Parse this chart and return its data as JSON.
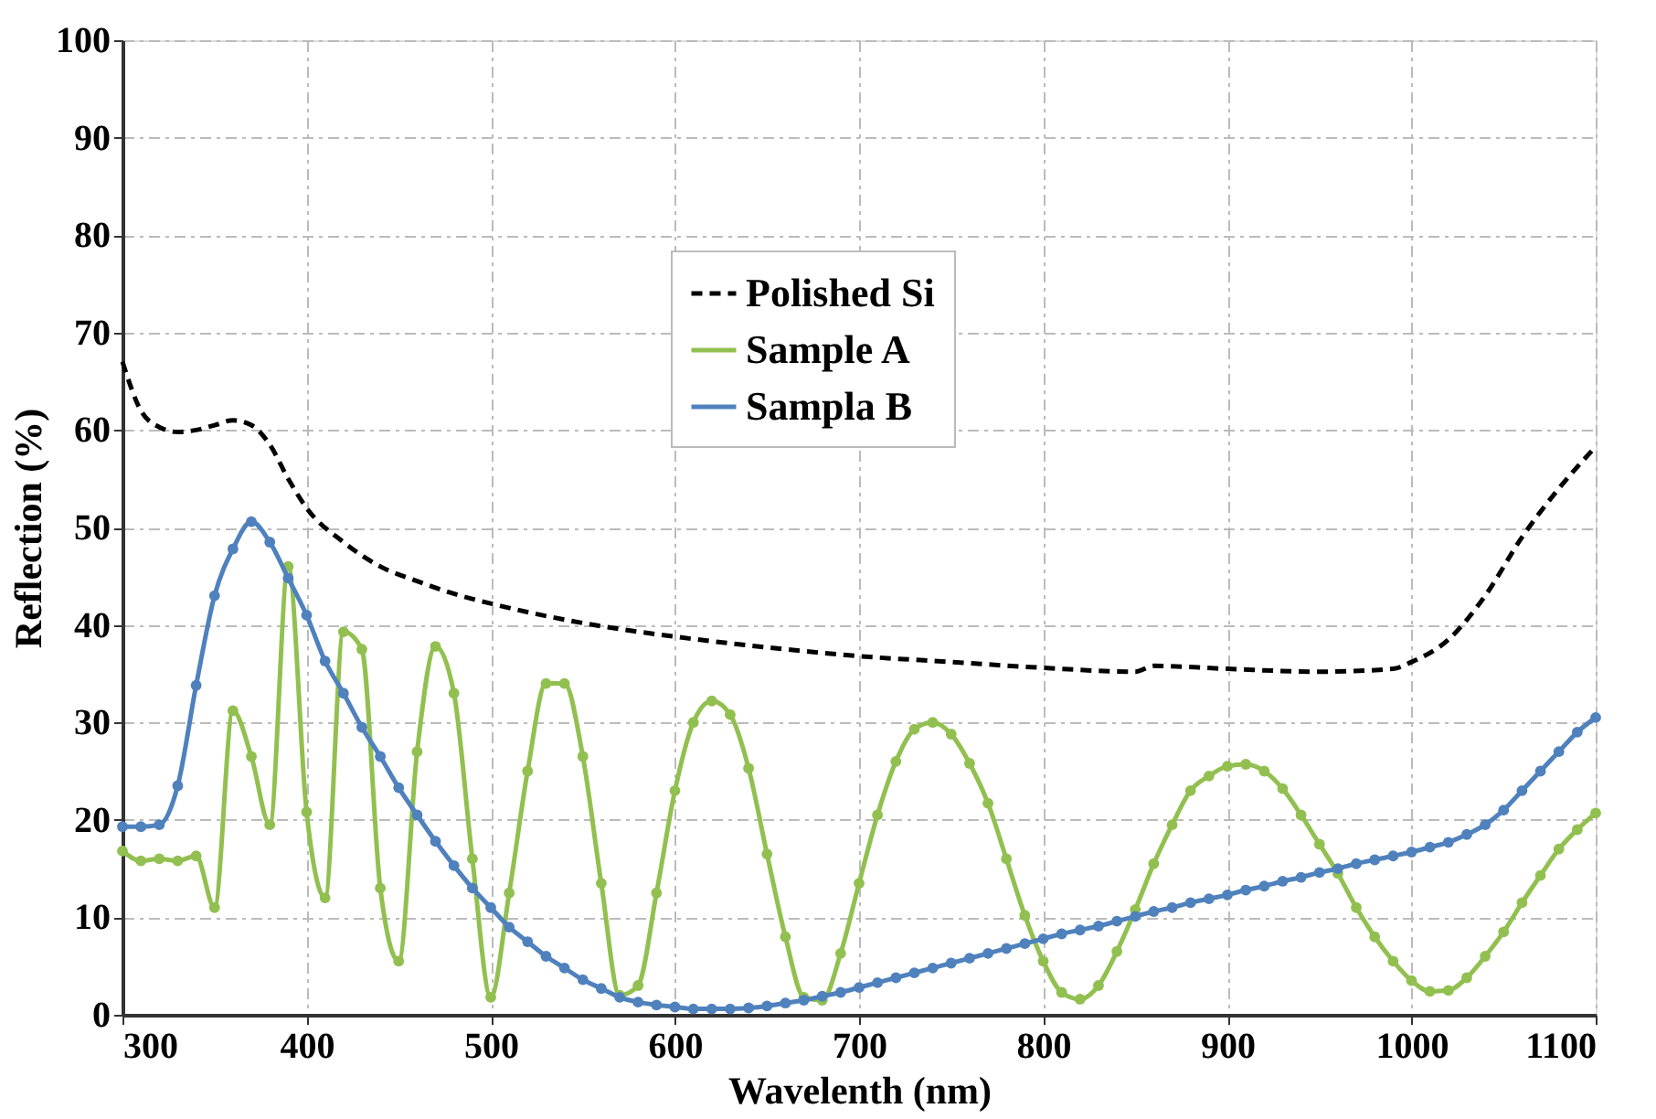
{
  "chart_data": {
    "type": "line",
    "xlabel": "Wavelenth (nm)",
    "ylabel": "Reflection (%)",
    "xlim": [
      300,
      1100
    ],
    "xticks": [
      300,
      400,
      500,
      600,
      700,
      800,
      900,
      1000,
      1100
    ],
    "ylim": [
      0,
      100
    ],
    "yticks": [
      0,
      10,
      20,
      30,
      40,
      50,
      60,
      70,
      80,
      90,
      100
    ],
    "grid": true,
    "legend": "top",
    "series": [
      {
        "name": "Polished Si",
        "color": "#000000",
        "line_style": "dashed",
        "marker": "none",
        "x": [
          300,
          310,
          320,
          330,
          340,
          350,
          360,
          370,
          380,
          390,
          400,
          420,
          440,
          460,
          480,
          500,
          550,
          600,
          650,
          700,
          750,
          800,
          850,
          860,
          900,
          950,
          990,
          1000,
          1020,
          1040,
          1060,
          1080,
          1100
        ],
        "values": [
          67,
          62,
          60.3,
          59.8,
          60,
          60.5,
          61,
          60.5,
          58.5,
          55,
          52,
          48.5,
          46,
          44.5,
          43.2,
          42.2,
          40.2,
          38.8,
          37.7,
          36.8,
          36.2,
          35.6,
          35.2,
          35.8,
          35.5,
          35.2,
          35.5,
          36.2,
          38.5,
          43,
          49,
          54,
          58.3
        ]
      },
      {
        "name": "Sample A",
        "color": "#92c050",
        "line_style": "solid",
        "marker": "circle",
        "x": [
          300,
          310,
          320,
          330,
          340,
          350,
          360,
          370,
          380,
          390,
          400,
          410,
          420,
          430,
          440,
          450,
          460,
          470,
          480,
          490,
          500,
          510,
          520,
          530,
          540,
          550,
          560,
          570,
          580,
          590,
          600,
          610,
          620,
          630,
          640,
          650,
          660,
          670,
          680,
          690,
          700,
          710,
          720,
          730,
          740,
          750,
          760,
          770,
          780,
          790,
          800,
          810,
          820,
          830,
          840,
          850,
          860,
          870,
          880,
          890,
          900,
          910,
          920,
          930,
          940,
          950,
          960,
          970,
          980,
          990,
          1000,
          1010,
          1020,
          1030,
          1040,
          1050,
          1060,
          1070,
          1080,
          1090,
          1100
        ],
        "values": [
          16.8,
          15.8,
          16,
          15.8,
          16.3,
          11,
          31.2,
          26.5,
          19.5,
          46,
          20.8,
          12,
          39.3,
          37.5,
          13,
          5.5,
          27,
          37.8,
          33,
          16,
          1.8,
          12.5,
          25,
          34,
          34,
          26.5,
          13.5,
          2,
          3,
          12.5,
          23,
          30,
          32.2,
          30.8,
          25.3,
          16.5,
          8,
          1.8,
          1.5,
          6.3,
          13.5,
          20.5,
          26,
          29.3,
          30,
          28.8,
          25.8,
          21.7,
          16,
          10.2,
          5.5,
          2.3,
          1.6,
          3,
          6.5,
          10.8,
          15.5,
          19.5,
          23,
          24.5,
          25.5,
          25.7,
          25,
          23.2,
          20.5,
          17.5,
          14.5,
          11,
          8,
          5.5,
          3.5,
          2.4,
          2.5,
          3.8,
          6,
          8.5,
          11.5,
          14.3,
          17,
          19,
          20.7
        ]
      },
      {
        "name": "Sampla B",
        "color": "#4f81bd",
        "line_style": "solid",
        "marker": "circle",
        "x": [
          300,
          310,
          320,
          330,
          340,
          350,
          360,
          370,
          380,
          390,
          400,
          410,
          420,
          430,
          440,
          450,
          460,
          470,
          480,
          490,
          500,
          510,
          520,
          530,
          540,
          550,
          560,
          570,
          580,
          590,
          600,
          610,
          620,
          630,
          640,
          650,
          660,
          670,
          680,
          690,
          700,
          710,
          720,
          730,
          740,
          750,
          760,
          770,
          780,
          790,
          800,
          810,
          820,
          830,
          840,
          850,
          860,
          870,
          880,
          890,
          900,
          910,
          920,
          930,
          940,
          950,
          960,
          970,
          980,
          990,
          1000,
          1010,
          1020,
          1030,
          1040,
          1050,
          1060,
          1070,
          1080,
          1090,
          1100
        ],
        "values": [
          19.3,
          19.3,
          19.5,
          23.5,
          33.8,
          43,
          47.8,
          50.6,
          48.5,
          44.8,
          41,
          36.3,
          33,
          29.5,
          26.5,
          23.3,
          20.5,
          17.8,
          15.3,
          13,
          11,
          9,
          7.5,
          6,
          4.8,
          3.6,
          2.7,
          1.8,
          1.3,
          1,
          0.8,
          0.6,
          0.6,
          0.6,
          0.7,
          0.9,
          1.2,
          1.5,
          1.9,
          2.3,
          2.8,
          3.3,
          3.8,
          4.3,
          4.8,
          5.3,
          5.8,
          6.3,
          6.8,
          7.3,
          7.8,
          8.3,
          8.7,
          9.1,
          9.6,
          10.1,
          10.6,
          11,
          11.5,
          11.9,
          12.3,
          12.8,
          13.2,
          13.7,
          14.1,
          14.6,
          15,
          15.5,
          15.9,
          16.3,
          16.7,
          17.2,
          17.7,
          18.5,
          19.5,
          21,
          23,
          25,
          27,
          29,
          30.5
        ]
      }
    ]
  }
}
